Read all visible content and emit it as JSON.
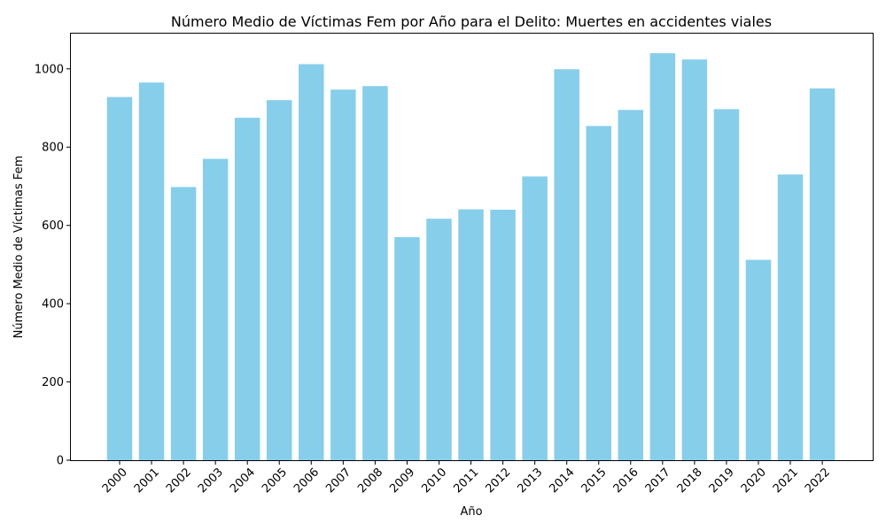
{
  "chart_data": {
    "type": "bar",
    "title": "Número Medio de Víctimas Fem por Año para el Delito: Muertes en accidentes viales",
    "xlabel": "Año",
    "ylabel": "Número Medio de Víctimas Fem",
    "categories": [
      "2000",
      "2001",
      "2002",
      "2003",
      "2004",
      "2005",
      "2006",
      "2007",
      "2008",
      "2009",
      "2010",
      "2011",
      "2012",
      "2013",
      "2014",
      "2015",
      "2016",
      "2017",
      "2018",
      "2019",
      "2020",
      "2021",
      "2022"
    ],
    "values": [
      928,
      965,
      698,
      770,
      875,
      920,
      1012,
      947,
      956,
      570,
      617,
      641,
      640,
      725,
      999,
      854,
      895,
      1040,
      1024,
      897,
      512,
      730,
      950
    ],
    "ylim": [
      0,
      1090
    ],
    "yticks": [
      0,
      200,
      400,
      600,
      800,
      1000
    ],
    "bar_color": "#87ceeb",
    "grid": false,
    "legend": "none"
  }
}
